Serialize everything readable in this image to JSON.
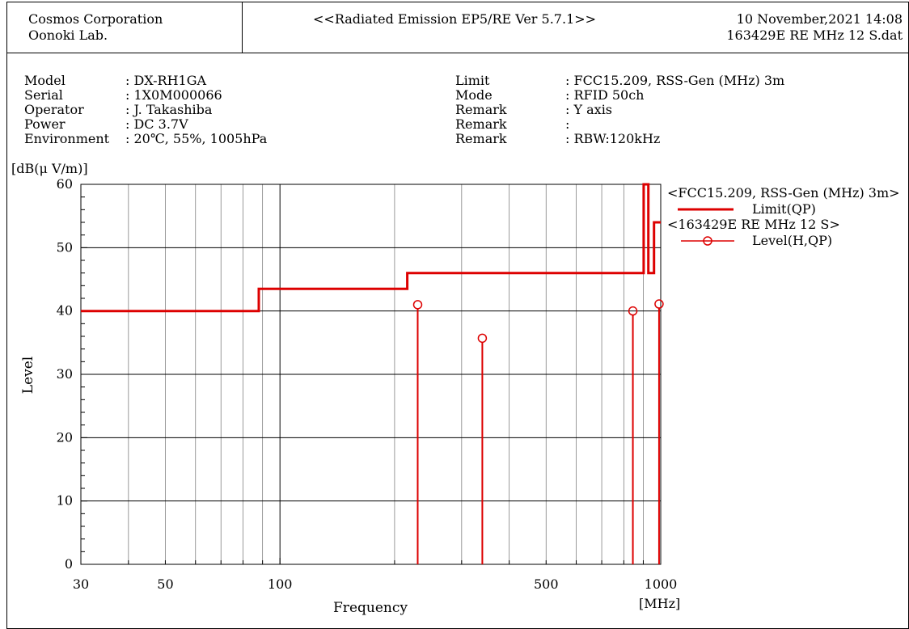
{
  "header": {
    "company": "Cosmos Corporation",
    "lab": "Oonoki Lab.",
    "software": "<<Radiated Emission EP5/RE Ver 5.7.1>>",
    "datetime": "10 November,2021 14:08",
    "filename": "163429E RE MHz 12 S.dat"
  },
  "info_left": [
    {
      "label": "Model",
      "value": ": DX-RH1GA"
    },
    {
      "label": "Serial",
      "value": ": 1X0M000066"
    },
    {
      "label": "Operator",
      "value": ": J. Takashiba"
    },
    {
      "label": "Power",
      "value": ": DC 3.7V"
    },
    {
      "label": "Environment",
      "value": ": 20℃, 55%, 1005hPa"
    }
  ],
  "info_right": [
    {
      "label": "Limit",
      "value": ": FCC15.209, RSS-Gen (MHz) 3m"
    },
    {
      "label": "Mode",
      "value": ": RFID 50ch"
    },
    {
      "label": "Remark",
      "value": ": Y axis"
    },
    {
      "label": "Remark",
      "value": ":"
    },
    {
      "label": "Remark",
      "value": ": RBW:120kHz"
    }
  ],
  "colors": {
    "limit": "#dd0000",
    "level": "#dd0000",
    "grid": "#808080",
    "axis": "#000000"
  },
  "chart_data": {
    "type": "line",
    "xscale": "log",
    "xlim": [
      30,
      1000
    ],
    "ylim": [
      0,
      60
    ],
    "xlabel": "Frequency",
    "xunit": "[MHz]",
    "ylabel": "Level",
    "yunit": "[dB(μ V/m)]",
    "x_ticks": [
      30,
      50,
      100,
      500,
      1000
    ],
    "y_ticks": [
      0,
      10,
      20,
      30,
      40,
      50,
      60
    ],
    "legend": [
      {
        "group": "<FCC15.209, RSS-Gen (MHz) 3m>",
        "entry": "Limit(QP)"
      },
      {
        "group": "<163429E RE MHz 12 S>",
        "entry": "Level(H,QP)"
      }
    ],
    "legend_position": "right",
    "limit": {
      "name": "Limit(QP)",
      "steps": [
        [
          30,
          40
        ],
        [
          88,
          40
        ],
        [
          88,
          43.5
        ],
        [
          216,
          43.5
        ],
        [
          216,
          46
        ],
        [
          902,
          46
        ],
        [
          902,
          60
        ],
        [
          928,
          60
        ],
        [
          928,
          46
        ],
        [
          960,
          46
        ],
        [
          960,
          54
        ],
        [
          1000,
          54
        ]
      ]
    },
    "series": [
      {
        "name": "Level(H,QP)",
        "points": [
          [
            230,
            41
          ],
          [
            340,
            35.7
          ],
          [
            845,
            40
          ],
          [
            990,
            41.1
          ]
        ]
      }
    ]
  }
}
